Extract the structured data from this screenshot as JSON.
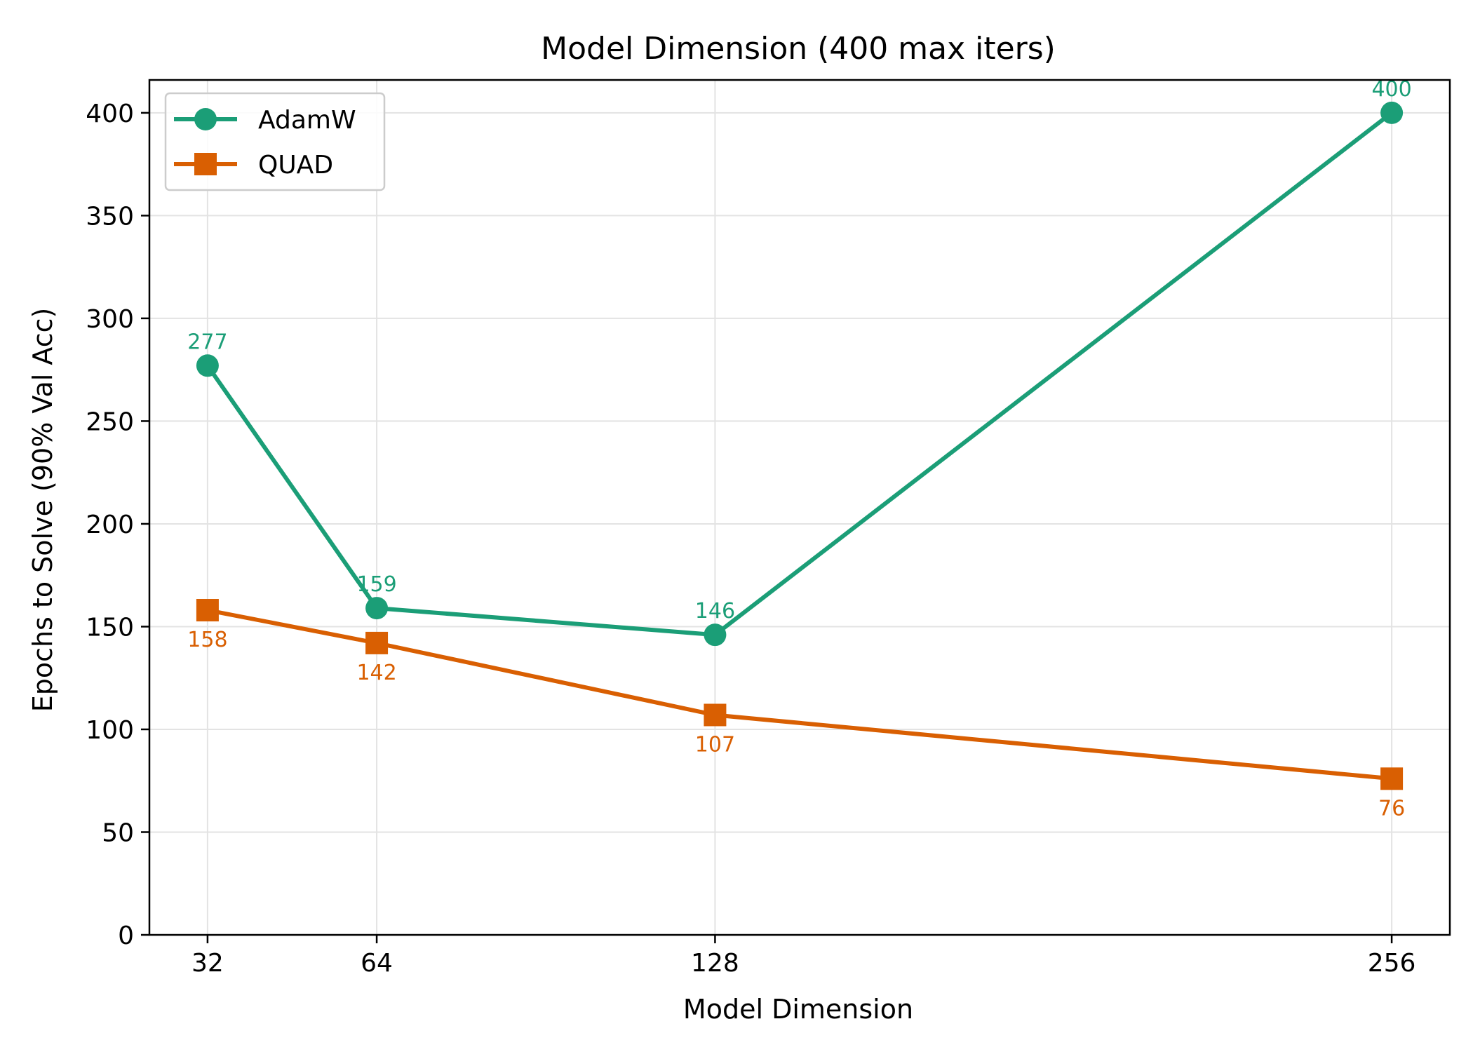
{
  "chart_data": {
    "type": "line",
    "title": "Model Dimension (400 max iters)",
    "xlabel": "Model Dimension",
    "ylabel": "Epochs to Solve (90% Val Acc)",
    "x": [
      32,
      64,
      128,
      256
    ],
    "x_tick_labels": [
      "32",
      "64",
      "128",
      "256"
    ],
    "xlim": [
      21,
      267
    ],
    "ylim": [
      0,
      416
    ],
    "y_ticks": [
      0,
      50,
      100,
      150,
      200,
      250,
      300,
      350,
      400
    ],
    "y_tick_labels": [
      "0",
      "50",
      "100",
      "150",
      "200",
      "250",
      "300",
      "350",
      "400"
    ],
    "grid": true,
    "legend_placement": "top-left",
    "series": [
      {
        "name": "AdamW",
        "values": [
          277,
          159,
          146,
          400
        ],
        "data_labels": [
          "277",
          "159",
          "146",
          "400"
        ],
        "color": "#1b9e77",
        "marker": "circle",
        "label_position": "above"
      },
      {
        "name": "QUAD",
        "values": [
          158,
          142,
          107,
          76
        ],
        "data_labels": [
          "158",
          "142",
          "107",
          "76"
        ],
        "color": "#d95f02",
        "marker": "square",
        "label_position": "below"
      }
    ]
  }
}
